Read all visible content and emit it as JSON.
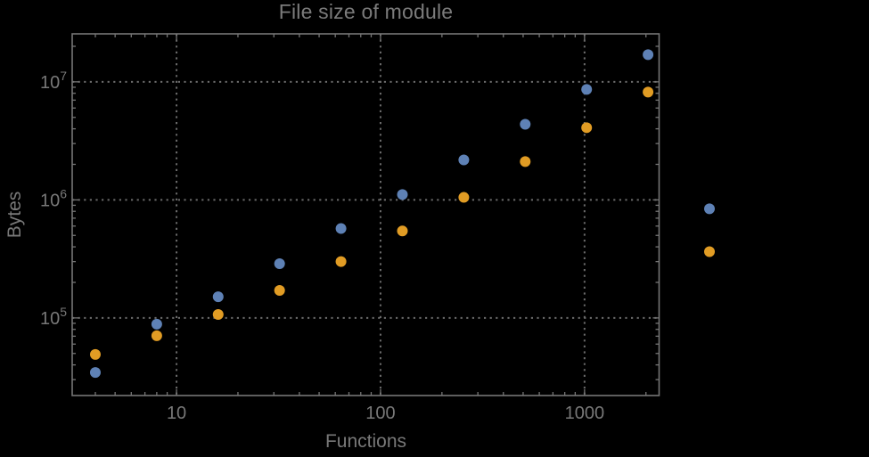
{
  "chart_data": {
    "type": "scatter",
    "title": "File size of module",
    "xlabel": "Functions",
    "ylabel": "Bytes",
    "xscale": "log",
    "yscale": "log",
    "xlim": [
      3.08,
      2320
    ],
    "ylim": [
      22000,
      25500000
    ],
    "grid": "dotted",
    "legend": "none",
    "grid_x_values": [
      10,
      100,
      1000
    ],
    "grid_y_values": [
      100000,
      1000000,
      10000000
    ],
    "x_axis": {
      "label": "Functions",
      "tick_values": [
        10,
        100,
        1000
      ],
      "tick_labels": [
        "10",
        "100",
        "1000"
      ]
    },
    "y_axis": {
      "label": "Bytes",
      "tick_values": [
        100000,
        1000000,
        10000000
      ],
      "tick_base": "10",
      "tick_exponents": [
        "5",
        "6",
        "7"
      ]
    },
    "x": [
      4,
      8,
      16,
      32,
      64,
      128,
      256,
      512,
      1024,
      2048,
      4096
    ],
    "series": [
      {
        "name": "blue",
        "color": "#5E81B5",
        "values": [
          34500,
          88500,
          151000,
          288000,
          572000,
          1110000,
          2180000,
          4370000,
          8630000,
          17000000,
          841000
        ]
      },
      {
        "name": "orange",
        "color": "#E19C24",
        "values": [
          49000,
          70600,
          107000,
          171000,
          300000,
          545000,
          1050000,
          2110000,
          4090000,
          8190000,
          364000
        ]
      }
    ],
    "colors": {
      "background": "#000000",
      "frame": "#757575",
      "grid": "#6B6B6B",
      "text": "#787878"
    }
  }
}
